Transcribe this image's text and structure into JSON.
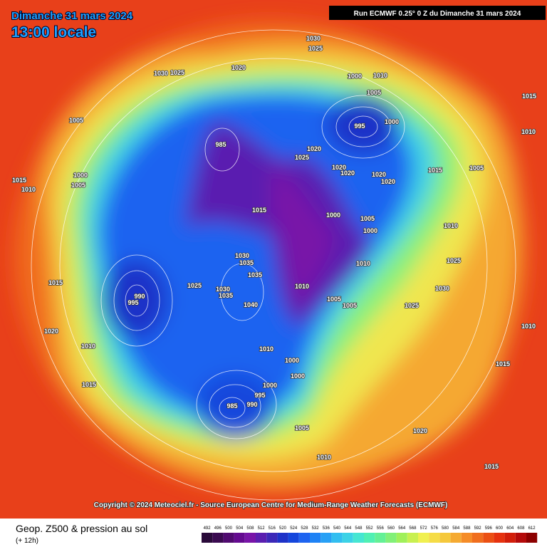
{
  "header": {
    "date": "Dimanche 31 mars 2024",
    "time": "13:00 locale",
    "run": "Run ECMWF 0.25° 0 Z du Dimanche 31 mars 2024"
  },
  "isobars": [
    1030,
    1025,
    1030,
    1025,
    1020,
    1000,
    1010,
    1005,
    995,
    1000,
    1005,
    985,
    1020,
    1025,
    1020,
    1020,
    1020,
    1020,
    1015,
    1015,
    1000,
    1005,
    1000,
    1010,
    1030,
    1035,
    1035,
    990,
    995,
    1025,
    1030,
    1035,
    1040,
    1010,
    1005,
    1005,
    1025,
    1020,
    1010,
    1015,
    1010,
    1000,
    1000,
    1000,
    995,
    990,
    985,
    1005,
    1010,
    1020,
    1015,
    1010,
    1030,
    1025,
    1010,
    1005,
    1015,
    1010,
    1015,
    1010,
    1000,
    1005,
    1015,
    1015
  ],
  "footer": {
    "copyright": "Copyright © 2024 Meteociel.fr - Source European Centre for Medium-Range Weather Forecasts (ECMWF)",
    "product": "Geop. Z500 & pression au sol",
    "lead": "(+ 12h)"
  },
  "legend": {
    "values": [
      492,
      496,
      500,
      504,
      508,
      512,
      516,
      520,
      524,
      528,
      532,
      536,
      540,
      544,
      548,
      552,
      556,
      560,
      564,
      568,
      572,
      576,
      580,
      584,
      588,
      592,
      596,
      600,
      604,
      608,
      612
    ]
  }
}
